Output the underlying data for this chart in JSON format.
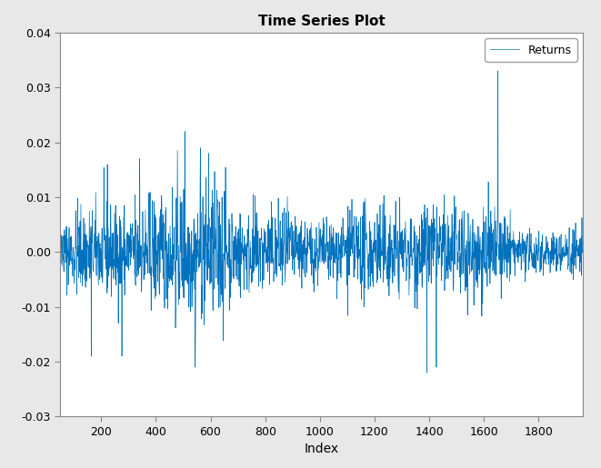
{
  "title": "Time Series Plot",
  "xlabel": "Index",
  "ylabel": "",
  "line_color": "#0072BD",
  "line_width": 0.5,
  "legend_label": "Returns",
  "xlim": [
    50,
    1962
  ],
  "ylim": [
    -0.03,
    0.04
  ],
  "yticks": [
    -0.03,
    -0.02,
    -0.01,
    0.0,
    0.01,
    0.02,
    0.03,
    0.04
  ],
  "xticks": [
    200,
    400,
    600,
    800,
    1000,
    1200,
    1400,
    1600,
    1800
  ],
  "background_color": "#e8e8e8",
  "axes_background": "#ffffff",
  "seed": 42,
  "n_points": 1962,
  "title_fontsize": 11,
  "label_fontsize": 10,
  "figwidth": 6.61,
  "figheight": 5.15,
  "dpi": 100
}
